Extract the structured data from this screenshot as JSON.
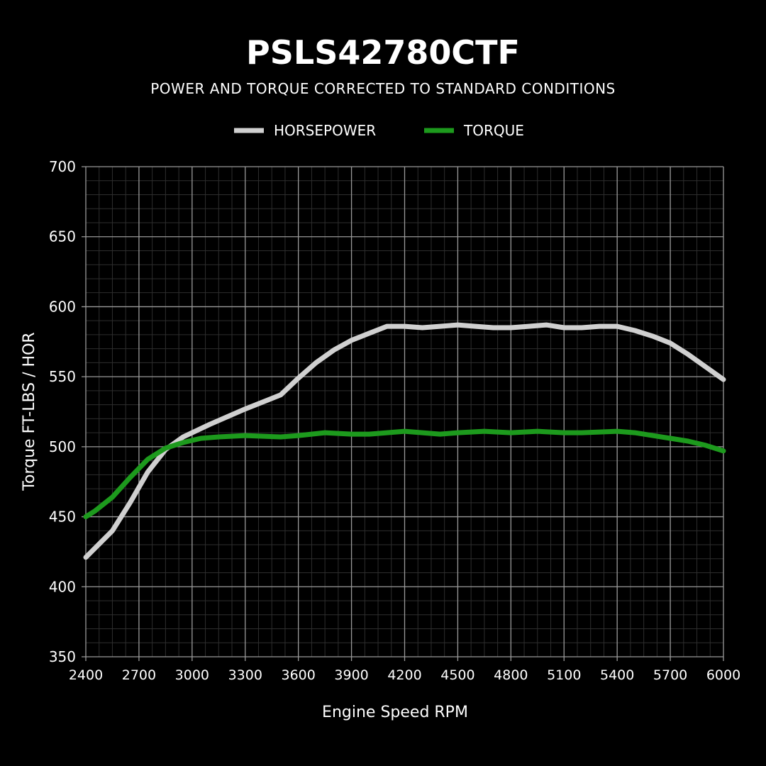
{
  "chart_data": {
    "type": "line",
    "title": "PSLS42780CTF",
    "subtitle": "POWER AND TORQUE CORRECTED TO STANDARD CONDITIONS",
    "xlabel": "Engine Speed RPM",
    "ylabel": "Torque FT-LBS / HOR",
    "xlim": [
      2400,
      6000
    ],
    "ylim": [
      350,
      700
    ],
    "xticks": [
      2400,
      2700,
      3000,
      3300,
      3600,
      3900,
      4200,
      4500,
      4800,
      5100,
      5400,
      5700,
      6000
    ],
    "yticks": [
      350,
      400,
      450,
      500,
      550,
      600,
      650,
      700
    ],
    "grid": true,
    "legend_position": "top-center",
    "series": [
      {
        "name": "HORSEPOWER",
        "color": "#d0d0d0",
        "x": [
          2400,
          2550,
          2650,
          2750,
          2850,
          2950,
          3100,
          3300,
          3500,
          3600,
          3700,
          3800,
          3900,
          4000,
          4100,
          4200,
          4300,
          4400,
          4500,
          4600,
          4700,
          4800,
          4900,
          5000,
          5100,
          5200,
          5300,
          5400,
          5500,
          5600,
          5700,
          5800,
          5900,
          6000
        ],
        "values": [
          421,
          440,
          460,
          482,
          498,
          507,
          516,
          527,
          537,
          549,
          560,
          569,
          576,
          581,
          586,
          586,
          585,
          586,
          587,
          586,
          585,
          585,
          586,
          587,
          585,
          585,
          586,
          586,
          583,
          579,
          574,
          566,
          557,
          548
        ]
      },
      {
        "name": "TORQUE",
        "color": "#1d9a1d",
        "x": [
          2400,
          2450,
          2550,
          2650,
          2750,
          2850,
          2950,
          3050,
          3150,
          3300,
          3500,
          3600,
          3750,
          3900,
          4000,
          4200,
          4300,
          4400,
          4500,
          4650,
          4800,
          4950,
          5100,
          5200,
          5400,
          5500,
          5600,
          5700,
          5800,
          5900,
          6000
        ],
        "values": [
          450,
          454,
          464,
          478,
          491,
          499,
          503,
          506,
          507,
          508,
          507,
          508,
          510,
          509,
          509,
          511,
          510,
          509,
          510,
          511,
          510,
          511,
          510,
          510,
          511,
          510,
          508,
          506,
          504,
          501,
          497
        ]
      }
    ]
  }
}
